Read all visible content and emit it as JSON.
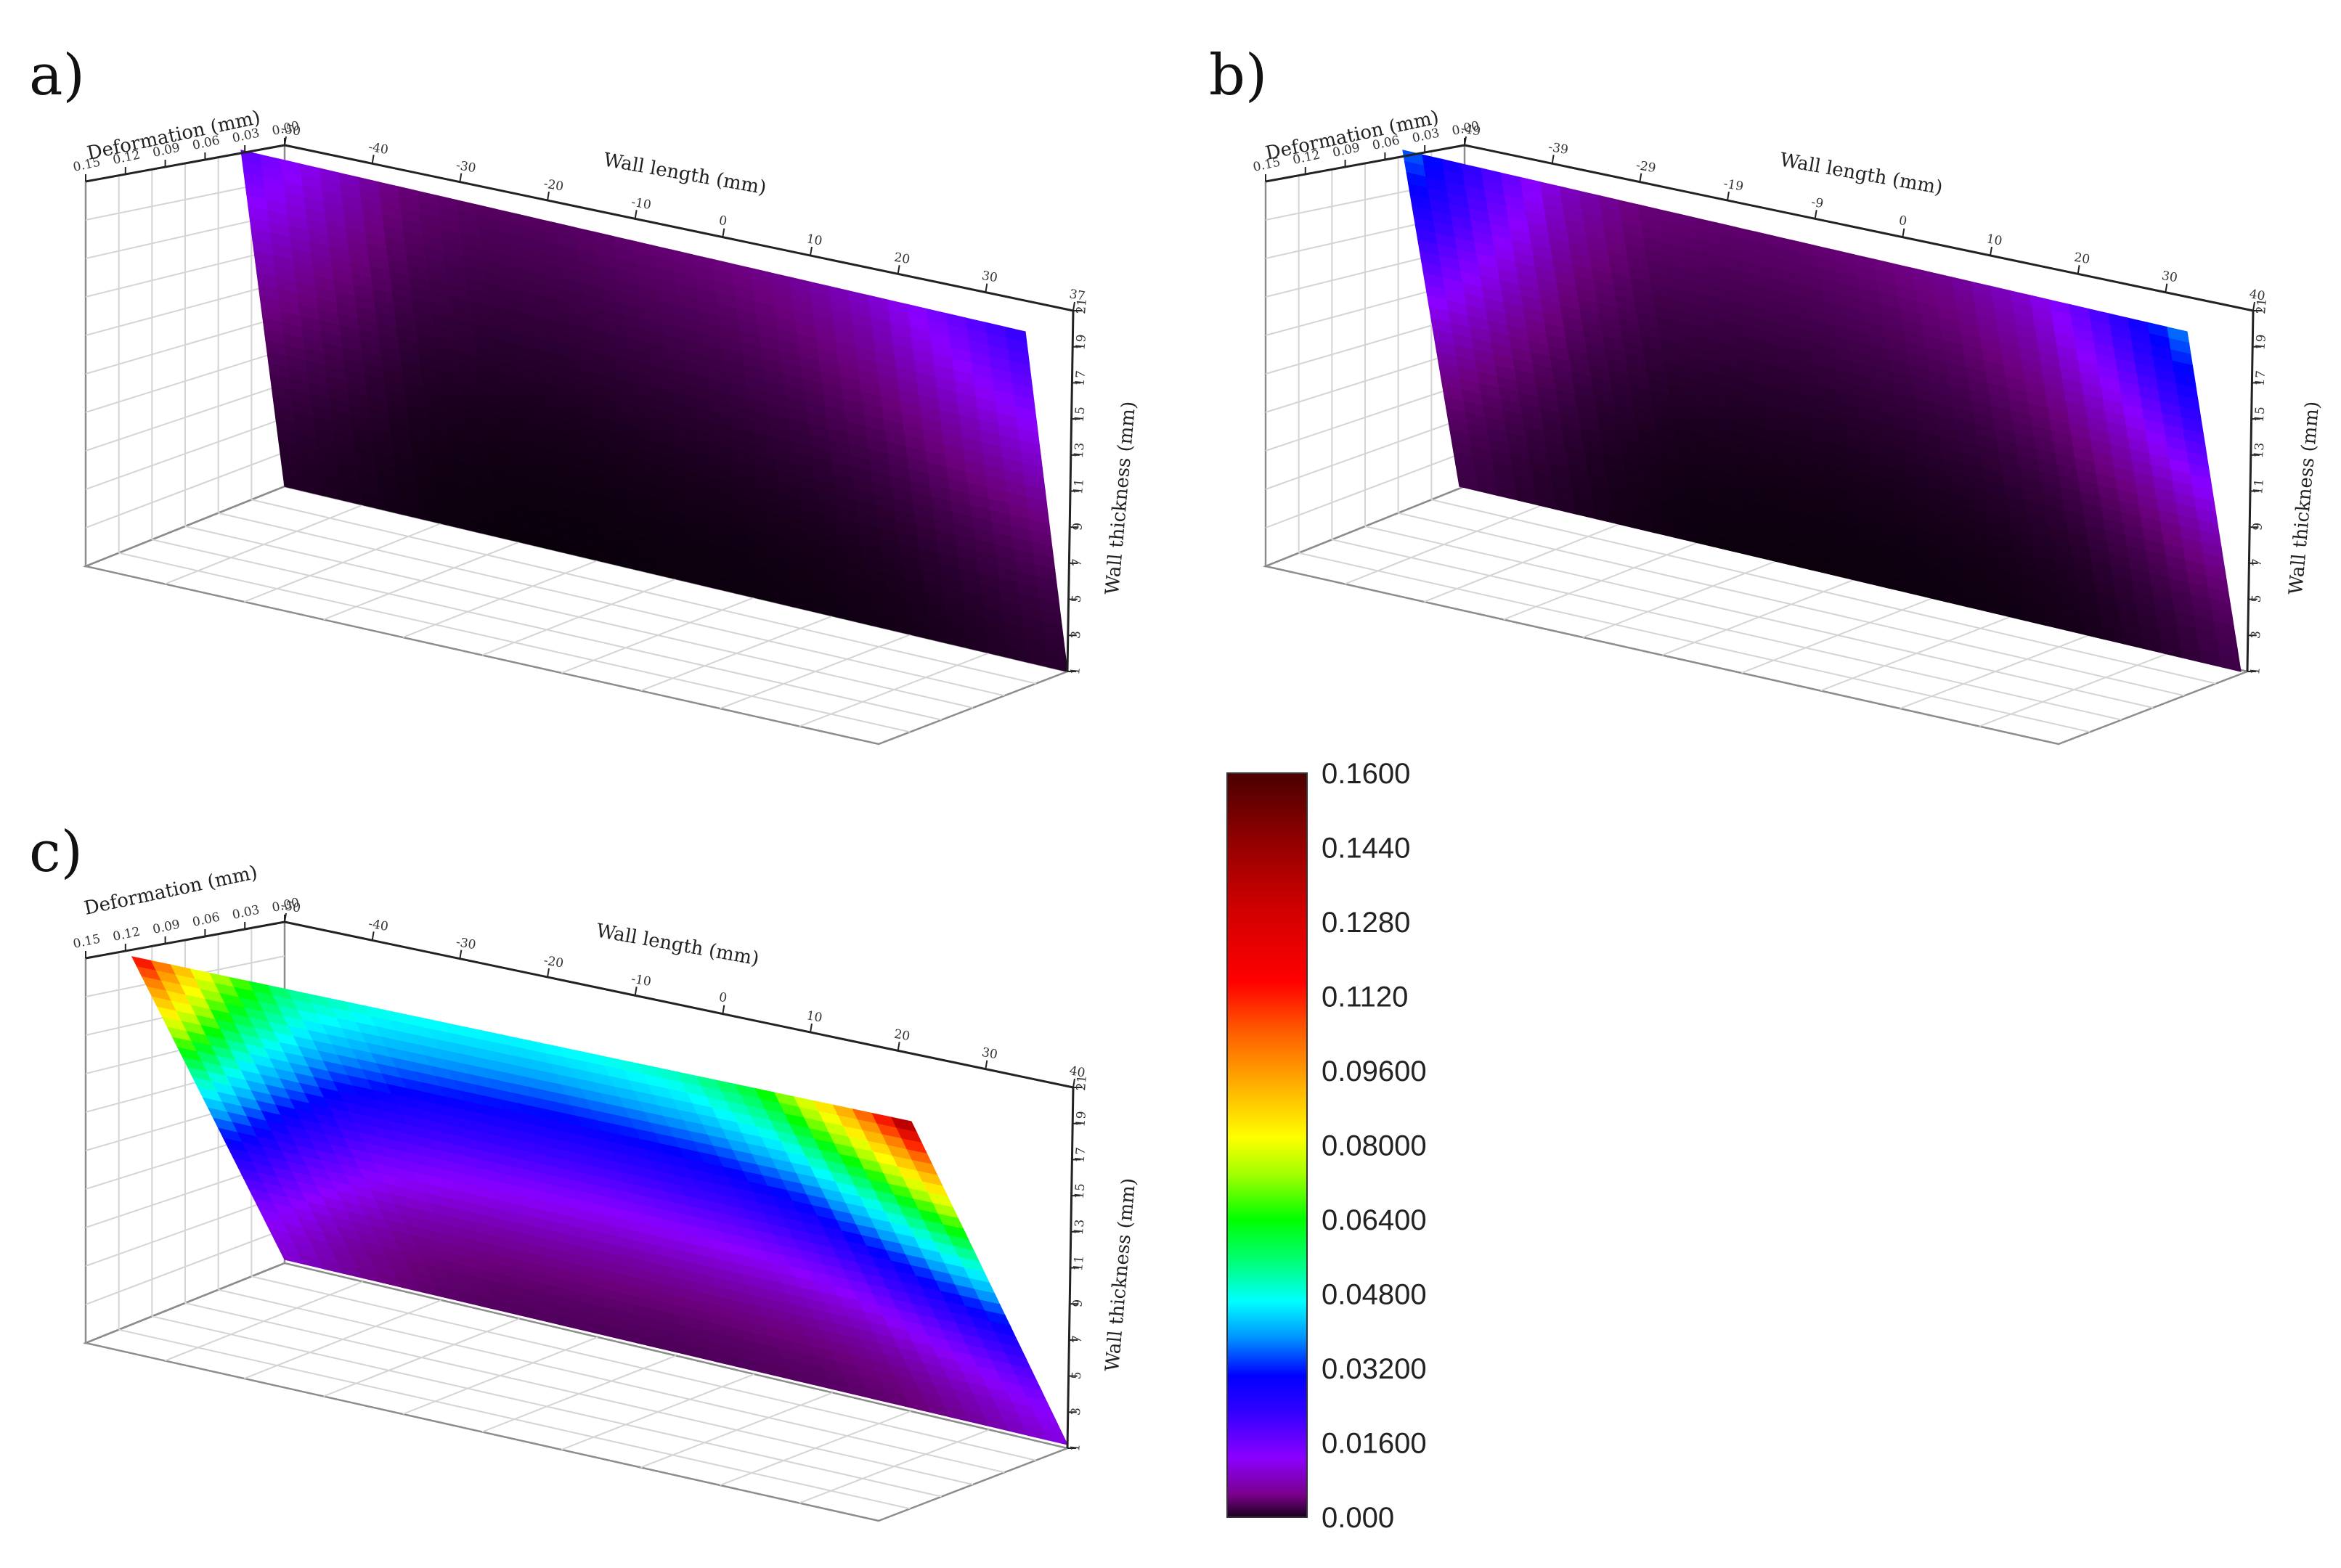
{
  "colorbar": {
    "min": 0,
    "max": 0.16,
    "tick_labels": [
      "0.1600",
      "0.1440",
      "0.1280",
      "0.1120",
      "0.09600",
      "0.08000",
      "0.06400",
      "0.04800",
      "0.03200",
      "0.01600",
      "0.000"
    ],
    "colors": [
      "#000000",
      "#6a007a",
      "#8b00ff",
      "#3a00ff",
      "#0000ff",
      "#00a0ff",
      "#00ffff",
      "#00ff80",
      "#00ff00",
      "#a0ff00",
      "#ffff00",
      "#ffc000",
      "#ff8000",
      "#ff2000",
      "#cc0000",
      "#7a0000",
      "#3a0000"
    ]
  },
  "chart_data": [
    {
      "type": "surface",
      "panel": "a)",
      "xlabel": "Wall length (mm)",
      "ylabel": "Wall thickness (mm)",
      "zlabel": "Deformation (mm)",
      "x_ticks": [
        "-40",
        "-32",
        "-24",
        "-16",
        "-8",
        "0",
        "8",
        "16",
        "24",
        "32",
        "40"
      ],
      "x_tick_labels": [
        "-50",
        "-40",
        "-30",
        "-20",
        "-10",
        "0",
        "10",
        "20",
        "30",
        "37"
      ],
      "y_ticks": [
        "1",
        "3",
        "5",
        "7",
        "9",
        "11",
        "13",
        "15",
        "17",
        "19",
        "21"
      ],
      "z_tick_labels": [
        "0.15",
        "0.12",
        "0.09",
        "0.06",
        "0.03",
        "0.00"
      ],
      "x_range": [
        -50,
        37
      ],
      "y_range": [
        1,
        21
      ],
      "deformation_profile": [
        0.026,
        0.018,
        0.01,
        0.008,
        0.008,
        0.009,
        0.01,
        0.012,
        0.016,
        0.024,
        0.032
      ],
      "thickness_decay": [
        1.0,
        0.85,
        0.7,
        0.55,
        0.42,
        0.3,
        0.2,
        0.12,
        0.06,
        0.02,
        0.0
      ]
    },
    {
      "type": "surface",
      "panel": "b)",
      "xlabel": "Wall length (mm)",
      "ylabel": "Wall thickness (mm)",
      "zlabel": "Deformation (mm)",
      "x_tick_labels": [
        "-49",
        "-39",
        "-29",
        "-19",
        "-9",
        "0",
        "10",
        "20",
        "30",
        "40"
      ],
      "y_ticks": [
        "1",
        "3",
        "5",
        "7",
        "9",
        "11",
        "13",
        "15",
        "17",
        "19",
        "21"
      ],
      "z_tick_labels": [
        "0.15",
        "0.12",
        "0.09",
        "0.06",
        "0.03",
        "0.00"
      ],
      "x_range": [
        -49,
        40
      ],
      "y_range": [
        1,
        21
      ],
      "deformation_profile": [
        0.048,
        0.03,
        0.016,
        0.01,
        0.009,
        0.009,
        0.01,
        0.012,
        0.017,
        0.03,
        0.05
      ],
      "thickness_decay": [
        1.0,
        0.85,
        0.7,
        0.55,
        0.42,
        0.3,
        0.2,
        0.12,
        0.06,
        0.02,
        0.0
      ]
    },
    {
      "type": "surface",
      "panel": "c)",
      "xlabel": "Wall length (mm)",
      "ylabel": "Wall thickness (mm)",
      "zlabel": "Deformation (mm)",
      "x_tick_labels": [
        "-50",
        "-40",
        "-30",
        "-20",
        "-10",
        "0",
        "10",
        "20",
        "30",
        "40"
      ],
      "y_ticks": [
        "1",
        "3",
        "5",
        "7",
        "9",
        "11",
        "13",
        "15",
        "17",
        "19",
        "21"
      ],
      "z_tick_labels": [
        "0.15",
        "0.12",
        "0.09",
        "0.06",
        "0.03",
        "0.00"
      ],
      "x_range": [
        -50,
        40
      ],
      "y_range": [
        1,
        21
      ],
      "deformation_profile": [
        0.14,
        0.095,
        0.07,
        0.063,
        0.061,
        0.06,
        0.062,
        0.066,
        0.078,
        0.11,
        0.15
      ],
      "thickness_decay": [
        1.0,
        0.85,
        0.7,
        0.55,
        0.42,
        0.3,
        0.2,
        0.12,
        0.06,
        0.02,
        0.0
      ]
    }
  ]
}
